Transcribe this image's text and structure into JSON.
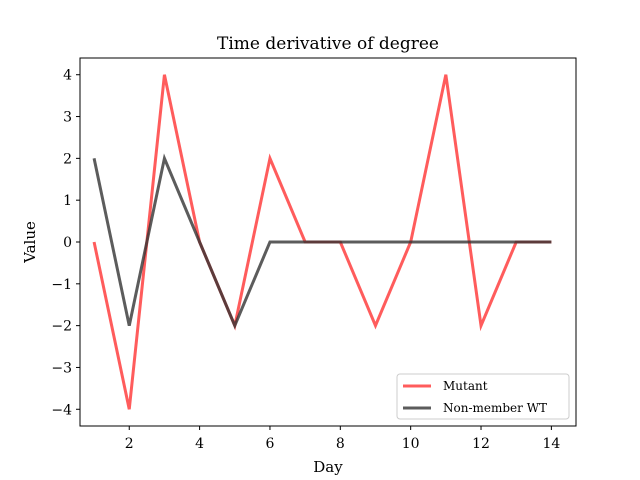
{
  "chart_data": {
    "type": "line",
    "title": "Time derivative of degree",
    "xlabel": "Day",
    "ylabel": "Value",
    "x": [
      1,
      2,
      3,
      4,
      5,
      6,
      7,
      8,
      9,
      10,
      11,
      12,
      13,
      14
    ],
    "xlim": [
      0.6,
      14.7
    ],
    "ylim": [
      -4.4,
      4.4
    ],
    "xticks": [
      2,
      4,
      6,
      8,
      10,
      12,
      14
    ],
    "yticks": [
      4,
      3,
      2,
      1,
      0,
      -1,
      -2,
      -3,
      -4
    ],
    "xtick_labels": [
      "2",
      "4",
      "6",
      "8",
      "10",
      "12",
      "14"
    ],
    "ytick_labels": [
      "4",
      "3",
      "2",
      "1",
      "0",
      "−1",
      "−2",
      "−3",
      "−4"
    ],
    "grid": false,
    "legend_position": "lower-right",
    "series": [
      {
        "name": "Mutant",
        "color": "#ff3333",
        "values": [
          0,
          -4,
          4,
          0,
          -2,
          2,
          0,
          0,
          -2,
          0,
          4,
          -2,
          0,
          0
        ]
      },
      {
        "name": "Non-member WT",
        "color": "#333333",
        "values": [
          2,
          -2,
          2,
          0,
          -2,
          0,
          0,
          0,
          0,
          0,
          0,
          0,
          0,
          0
        ]
      }
    ]
  }
}
